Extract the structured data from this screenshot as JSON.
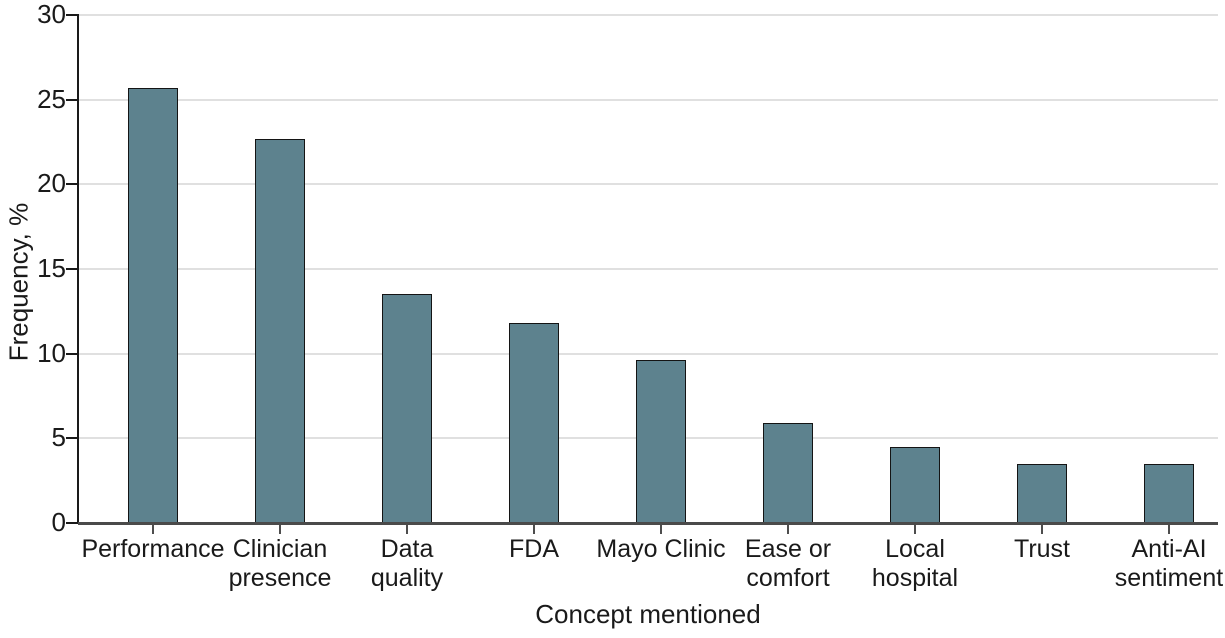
{
  "figure": {
    "background_color": "#ffffff"
  },
  "chart_data": {
    "type": "bar",
    "title": "",
    "xlabel": "Concept mentioned",
    "ylabel": "Frequency, %",
    "categories": [
      "Performance",
      "Clinician presence",
      "Data quality",
      "FDA",
      "Mayo Clinic",
      "Ease or comfort",
      "Local hospital",
      "Trust",
      "Anti-AI sentiment"
    ],
    "category_label_lines": [
      [
        "Performance"
      ],
      [
        "Clinician",
        "presence"
      ],
      [
        "Data",
        "quality"
      ],
      [
        "FDA"
      ],
      [
        "Mayo Clinic"
      ],
      [
        "Ease or",
        "comfort"
      ],
      [
        "Local",
        "hospital"
      ],
      [
        "Trust"
      ],
      [
        "Anti-AI",
        "sentiment"
      ]
    ],
    "values": [
      25.7,
      22.7,
      13.5,
      11.8,
      9.6,
      5.9,
      4.5,
      3.5,
      3.5
    ],
    "ylim": [
      0,
      30
    ],
    "yticks": [
      0,
      5,
      10,
      15,
      20,
      25,
      30
    ],
    "grid": true,
    "legend_position": "none",
    "colors": {
      "bar_fill": "#5d828e",
      "bar_edge": "#141414",
      "gridline": "#e0e0e0",
      "y_axis_line": "#1a1a1a",
      "baseline": "#4a4a4a",
      "x_tick": "#4d4d4d",
      "text": "#1a1a1a"
    }
  }
}
